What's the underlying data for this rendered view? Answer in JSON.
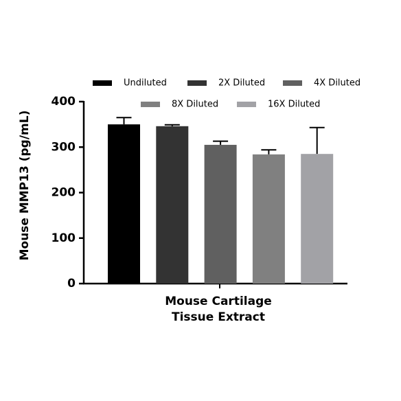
{
  "chart_data": {
    "type": "bar",
    "ylabel": "Mouse MMP13 (pg/mL)",
    "xlabel": [
      "Mouse Cartilage",
      "Tissue Extract"
    ],
    "ylim": [
      0,
      400
    ],
    "yticks": [
      0,
      100,
      200,
      300,
      400
    ],
    "series": [
      {
        "name": "Undiluted",
        "color": "#000000",
        "values": [
          350
        ],
        "errors": [
          15
        ]
      },
      {
        "name": "2X Diluted",
        "color": "#333333",
        "values": [
          346
        ],
        "errors": [
          3
        ]
      },
      {
        "name": "4X Diluted",
        "color": "#606060",
        "values": [
          305
        ],
        "errors": [
          8
        ]
      },
      {
        "name": "8X Diluted",
        "color": "#808080",
        "values": [
          284
        ],
        "errors": [
          10
        ]
      },
      {
        "name": "16X Diluted",
        "color": "#a2a2a6",
        "values": [
          285
        ],
        "errors": [
          58
        ]
      }
    ]
  }
}
